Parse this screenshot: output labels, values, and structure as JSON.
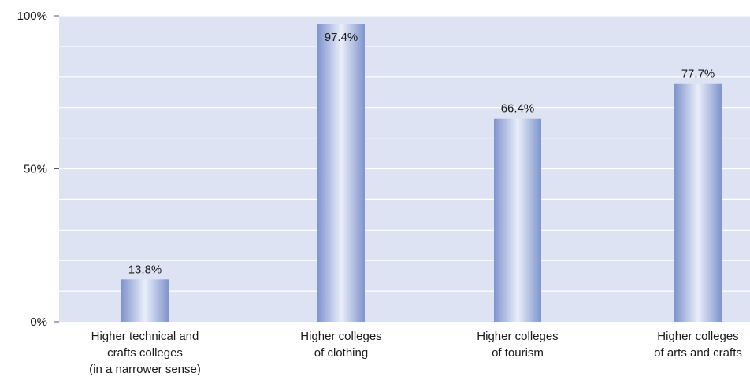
{
  "chart_data": {
    "type": "bar",
    "categories": [
      [
        "Higher technical and",
        "crafts colleges",
        "(in a narrower sense)"
      ],
      [
        "Higher colleges",
        "of clothing"
      ],
      [
        "Higher colleges",
        "of tourism"
      ],
      [
        "Higher colleges",
        "of arts and crafts"
      ]
    ],
    "values": [
      13.8,
      97.4,
      66.4,
      77.7
    ],
    "data_labels": [
      "13.8%",
      "97.4%",
      "66.4%",
      "77.7%"
    ],
    "y_ticks": [
      0,
      50,
      100
    ],
    "y_tick_labels": [
      "0%",
      "50%",
      "100%"
    ],
    "ylim": [
      0,
      100
    ],
    "grid": true,
    "legend": "none",
    "title": "",
    "xlabel": "",
    "ylabel": "",
    "colors": {
      "plot_background": "#dde3f3",
      "gridline": "#ffffff",
      "bar_edge": "#7f94cc",
      "bar_center": "#e9eef9",
      "axis": "#555555"
    }
  }
}
